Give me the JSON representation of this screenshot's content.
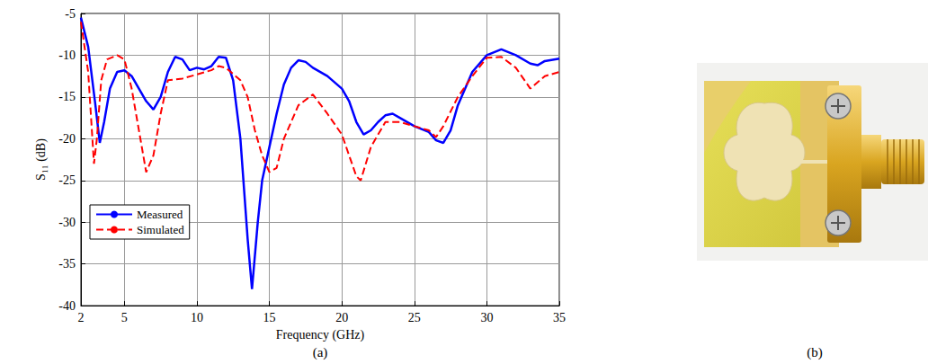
{
  "chart_data": {
    "type": "line",
    "x_label": "Frequency (GHz)",
    "y_label": "S₁₁ (dB)",
    "xlim": [
      2,
      35
    ],
    "xticks": [
      2,
      5,
      10,
      15,
      20,
      25,
      30,
      35
    ],
    "ylim": [
      -40,
      -5
    ],
    "yticks": [
      -40,
      -35,
      -30,
      -25,
      -20,
      -15,
      -10,
      -5
    ],
    "grid": true,
    "legend": "lower left",
    "series": [
      {
        "name": "Measured",
        "color": "#0000ff",
        "line_style": "solid",
        "x": [
          2,
          2.5,
          3,
          3.3,
          3.6,
          4,
          4.5,
          5,
          5.5,
          6,
          6.5,
          7,
          7.5,
          8,
          8.5,
          9,
          9.5,
          10,
          10.5,
          11,
          11.5,
          12,
          12.5,
          13,
          13.5,
          13.8,
          14.2,
          14.5,
          15,
          15.5,
          16,
          16.5,
          17,
          17.5,
          18,
          19,
          20,
          20.5,
          21,
          21.5,
          22,
          22.5,
          23,
          23.5,
          24,
          25,
          26,
          26.5,
          27,
          27.5,
          28,
          29,
          30,
          31,
          32,
          33,
          33.5,
          34,
          35
        ],
        "values": [
          -5.5,
          -9,
          -16,
          -20.5,
          -18,
          -14,
          -12,
          -11.8,
          -12.5,
          -14,
          -15.5,
          -16.5,
          -15,
          -12,
          -10.2,
          -10.5,
          -11.8,
          -11.5,
          -11.7,
          -11.3,
          -10.2,
          -10.3,
          -13,
          -20,
          -32,
          -38,
          -30,
          -25,
          -21,
          -17,
          -13.5,
          -11.5,
          -10.6,
          -10.8,
          -11.5,
          -12.5,
          -14,
          -15.5,
          -18,
          -19.5,
          -19,
          -18,
          -17.2,
          -17,
          -17.5,
          -18.5,
          -19.2,
          -20.2,
          -20.5,
          -19,
          -16,
          -12,
          -10,
          -9.3,
          -10,
          -11,
          -11.2,
          -10.7,
          -10.4
        ]
      },
      {
        "name": "Simulated",
        "color": "#ff0000",
        "line_style": "dashed",
        "x": [
          2,
          2.5,
          2.9,
          3.1,
          3.4,
          3.8,
          4.5,
          5,
          5.5,
          6,
          6.5,
          7,
          7.5,
          8,
          9,
          10,
          11,
          11.5,
          12,
          13,
          13.5,
          14,
          14.5,
          15,
          15.5,
          16,
          17,
          18,
          19,
          20,
          20.5,
          21,
          21.3,
          22,
          23,
          24,
          25,
          26,
          26.5,
          27,
          28,
          29,
          30,
          31,
          32,
          33,
          34,
          35
        ],
        "values": [
          -6,
          -12,
          -23,
          -20,
          -13,
          -10.5,
          -10,
          -10.5,
          -14,
          -19,
          -24,
          -22,
          -17,
          -13,
          -12.8,
          -12.3,
          -11.8,
          -11.3,
          -11.5,
          -13,
          -15,
          -19,
          -22,
          -24,
          -23.5,
          -20,
          -16,
          -14.7,
          -17,
          -19.5,
          -22,
          -24.5,
          -25,
          -21,
          -18,
          -18,
          -18.5,
          -19,
          -19.8,
          -18.5,
          -15,
          -12.5,
          -10.3,
          -10.2,
          -11.5,
          -14,
          -12.5,
          -12
        ]
      }
    ]
  },
  "figure": {
    "panel_labels": [
      "(a)",
      "(b)"
    ]
  }
}
